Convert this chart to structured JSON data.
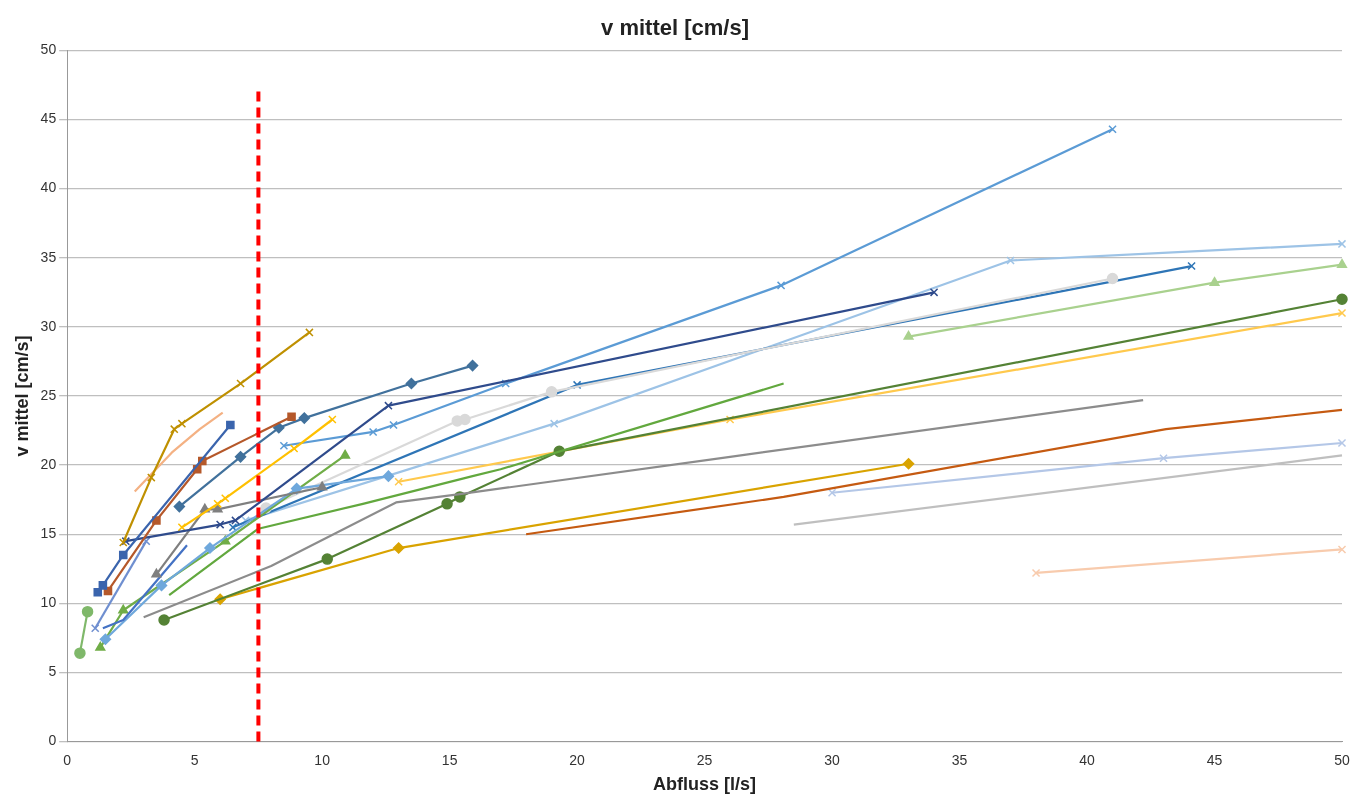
{
  "chart_data": {
    "type": "line",
    "title": "v mittel [cm/s]",
    "xlabel": "Abfluss [l/s]",
    "ylabel": "v mittel [cm/s]",
    "xlim": [
      0,
      50
    ],
    "xticks": [
      0,
      5,
      10,
      15,
      20,
      25,
      30,
      35,
      40,
      45,
      50
    ],
    "ylim": [
      0,
      50
    ],
    "yticks": [
      0,
      5,
      10,
      15,
      20,
      25,
      30,
      35,
      40,
      45,
      50
    ],
    "grid": "y",
    "legend": false,
    "ref_lines": [
      {
        "axis": "x",
        "value": 7.5,
        "color": "#ff0000",
        "line_style": "dashed"
      }
    ],
    "series": [
      {
        "color": "#7fb86a",
        "marker": "circle",
        "x": [
          0.5,
          0.8
        ],
        "values": [
          6.4,
          9.4
        ]
      },
      {
        "color": "#3a64ad",
        "marker": "square",
        "x": [
          1.2,
          1.4,
          2.2,
          6.4
        ],
        "values": [
          10.8,
          11.3,
          13.5,
          22.9
        ]
      },
      {
        "color": "#b5582a",
        "marker": "square",
        "x": [
          1.6,
          3.5,
          5.1,
          5.3,
          8.8
        ],
        "values": [
          10.9,
          16.0,
          19.7,
          20.3,
          23.5
        ]
      },
      {
        "color": "#bf9000",
        "marker": "cross",
        "x": [
          2.2,
          3.3,
          4.2,
          4.5,
          6.8,
          9.5
        ],
        "values": [
          14.4,
          19.1,
          22.6,
          23.0,
          25.9,
          29.6
        ]
      },
      {
        "color": "#f4b183",
        "marker": "none",
        "x": [
          2.65,
          4.1,
          5.2,
          6.1
        ],
        "values": [
          18.1,
          20.9,
          22.6,
          23.8
        ]
      },
      {
        "color": "#41719c",
        "marker": "diamond",
        "x": [
          4.4,
          6.8,
          8.3,
          9.3,
          13.5,
          15.9
        ],
        "values": [
          17.0,
          20.6,
          22.7,
          23.4,
          25.9,
          27.2
        ]
      },
      {
        "color": "#2f4b8c",
        "marker": "cross",
        "x": [
          2.3,
          6.0,
          6.6,
          12.6,
          34.0
        ],
        "values": [
          14.5,
          15.7,
          16.0,
          24.3,
          32.5
        ]
      },
      {
        "color": "#6f8fd0",
        "marker": "cross",
        "x": [
          1.1,
          3.1
        ],
        "values": [
          8.2,
          14.5
        ]
      },
      {
        "color": "#ffc000",
        "marker": "cross",
        "x": [
          4.5,
          5.9,
          6.2,
          8.9,
          10.4
        ],
        "values": [
          15.5,
          17.2,
          17.6,
          21.2,
          23.3
        ]
      },
      {
        "color": "#7f7f7f",
        "marker": "triangle",
        "x": [
          3.5,
          5.4,
          5.9,
          10.0
        ],
        "values": [
          12.1,
          16.8,
          16.8,
          18.4
        ]
      },
      {
        "color": "#4472c4",
        "marker": "none",
        "x": [
          1.4,
          2.2,
          4.7
        ],
        "values": [
          8.2,
          8.8,
          14.2
        ]
      },
      {
        "color": "#6fa8dc",
        "marker": "diamond",
        "x": [
          1.5,
          3.7,
          5.6,
          9.0,
          12.6
        ],
        "values": [
          7.4,
          11.3,
          14.0,
          18.3,
          19.2
        ]
      },
      {
        "color": "#70ad47",
        "marker": "triangle",
        "x": [
          1.3,
          2.2,
          6.2,
          10.9
        ],
        "values": [
          6.8,
          9.5,
          14.5,
          20.7
        ]
      },
      {
        "color": "#62a83e",
        "marker": "none",
        "x": [
          4.0,
          7.5,
          11.6,
          15.9,
          17.0,
          28.1
        ],
        "values": [
          10.6,
          15.4,
          17.2,
          19.2,
          19.7,
          25.9
        ]
      },
      {
        "color": "#8c8c8c",
        "marker": "none",
        "x": [
          3.0,
          8.0,
          12.9,
          15.4,
          26.0,
          42.2
        ],
        "values": [
          9.0,
          12.7,
          17.3,
          17.9,
          20.6,
          24.7
        ]
      },
      {
        "color": "#548235",
        "marker": "circle",
        "x": [
          3.8,
          10.2,
          14.9,
          15.4,
          19.3,
          50
        ],
        "values": [
          8.8,
          13.2,
          17.2,
          17.7,
          21.0,
          32.0
        ]
      },
      {
        "color": "#d9a300",
        "marker": "diamond",
        "x": [
          6.0,
          13.0,
          33.0
        ],
        "values": [
          10.3,
          14.0,
          20.1
        ]
      },
      {
        "color": "#c55a11",
        "marker": "none",
        "x": [
          18.0,
          28.1,
          43.1,
          50
        ],
        "values": [
          15.0,
          17.7,
          22.6,
          24.0
        ]
      },
      {
        "color": "#ffc94d",
        "marker": "cross",
        "x": [
          13.0,
          26.0,
          50
        ],
        "values": [
          18.8,
          23.3,
          31.0
        ]
      },
      {
        "color": "#d9d9d9",
        "marker": "circle",
        "x": [
          7.8,
          15.3,
          15.6,
          19.0,
          41.0
        ],
        "values": [
          16.9,
          23.2,
          23.3,
          25.3,
          33.5
        ]
      },
      {
        "color": "#2e75b6",
        "marker": "cross",
        "x": [
          6.5,
          20.0,
          44.1
        ],
        "values": [
          15.5,
          25.8,
          34.4
        ]
      },
      {
        "color": "#9dc3e6",
        "marker": "cross",
        "x": [
          7.0,
          19.1,
          37.0,
          50
        ],
        "values": [
          16.0,
          23.0,
          34.8,
          36.0
        ]
      },
      {
        "color": "#5b9bd5",
        "marker": "cross",
        "x": [
          8.5,
          12.0,
          12.8,
          17.2,
          28.0,
          41.0
        ],
        "values": [
          21.4,
          22.4,
          22.9,
          25.9,
          33.0,
          44.3
        ]
      },
      {
        "color": "#a9d18e",
        "marker": "triangle",
        "x": [
          33.0,
          45.0,
          50
        ],
        "values": [
          29.3,
          33.2,
          34.5
        ]
      },
      {
        "color": "#b4c7e7",
        "marker": "cross",
        "x": [
          30.0,
          43.0,
          50
        ],
        "values": [
          18.0,
          20.5,
          21.6
        ]
      },
      {
        "color": "#bfbfbf",
        "marker": "none",
        "x": [
          28.5,
          50
        ],
        "values": [
          15.7,
          20.7
        ]
      },
      {
        "color": "#f8cbad",
        "marker": "cross",
        "x": [
          38.0,
          50
        ],
        "values": [
          12.2,
          13.9
        ]
      }
    ]
  }
}
